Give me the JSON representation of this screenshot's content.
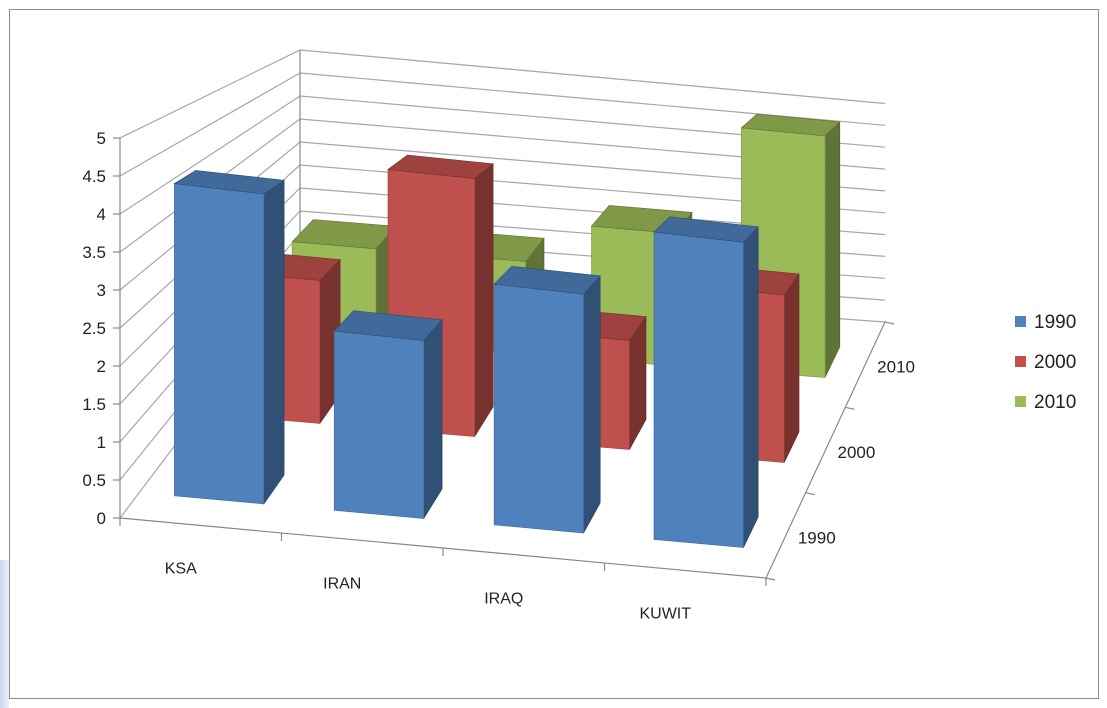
{
  "chart_data": {
    "type": "bar",
    "subtype": "3d-column",
    "title": "",
    "categories": [
      "KSA",
      "IRAN",
      "IRAQ",
      "KUWIT"
    ],
    "series": [
      {
        "name": "1990",
        "values": [
          4.3,
          2.5,
          3.4,
          4.4
        ],
        "color": "#4f81bd"
      },
      {
        "name": "2000",
        "values": [
          2.3,
          4.2,
          1.8,
          2.8
        ],
        "color": "#c0504d"
      },
      {
        "name": "2010",
        "values": [
          1.8,
          1.8,
          2.6,
          4.8
        ],
        "color": "#9bbb59"
      }
    ],
    "y_ticks": [
      "0",
      "0.5",
      "1",
      "1.5",
      "2",
      "2.5",
      "3",
      "3.5",
      "4",
      "4.5",
      "5"
    ],
    "depth_labels": [
      "1990",
      "2000",
      "2010"
    ],
    "ylim": [
      0,
      5
    ],
    "grid": true,
    "legend": "right"
  }
}
